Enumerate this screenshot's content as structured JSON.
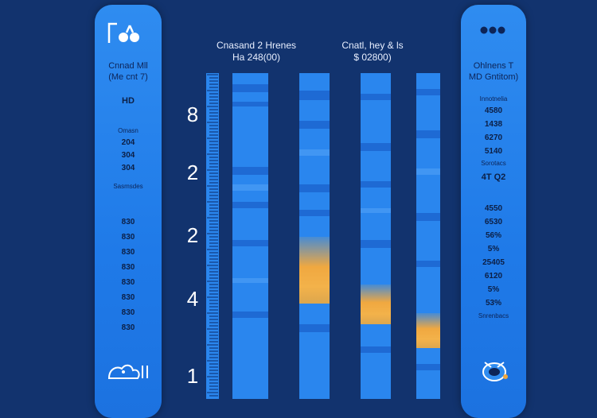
{
  "left_panel": {
    "title_lines": [
      "Cnnad Mll",
      "(Me cnt 7)"
    ],
    "top_value": "HD",
    "group1_label": "Omasn",
    "group1_values": [
      "204",
      "304",
      "304"
    ],
    "mid_label": "Sasmsdes",
    "group2_values": [
      "830",
      "830",
      "830",
      "830",
      "830",
      "830",
      "830",
      "830"
    ]
  },
  "right_panel": {
    "title_lines": [
      "Ohlnens T",
      "MD Gntitom)"
    ],
    "rows": [
      "Innotnelia",
      "4580",
      "1438",
      "6270",
      "5140",
      "Sorotacs",
      "4T Q2",
      "4550",
      "6530",
      "56%",
      "5%",
      "25405",
      "6120",
      "5%",
      "53%",
      "Snrenbacs"
    ]
  },
  "headers": {
    "left": [
      "Cnasand 2 Hrenes",
      "Ha 248(00)"
    ],
    "right": [
      "Cnatl, hey & ls",
      "$ 02800)"
    ]
  },
  "axis": {
    "labels": [
      "8",
      "2",
      "2",
      "4",
      "1"
    ]
  },
  "lanes": [
    {
      "id": "lane-1",
      "hot": null
    },
    {
      "id": "lane-2",
      "hot": "upper"
    },
    {
      "id": "lane-3",
      "hot": "middle"
    },
    {
      "id": "lane-4",
      "hot": "lower"
    }
  ],
  "colors": {
    "background": "#12336e",
    "panel": "#2a86ee",
    "highlight": "#f0a840"
  },
  "icons": [
    "flask-icon",
    "dots-icon",
    "creature-icon",
    "globe-icon"
  ]
}
